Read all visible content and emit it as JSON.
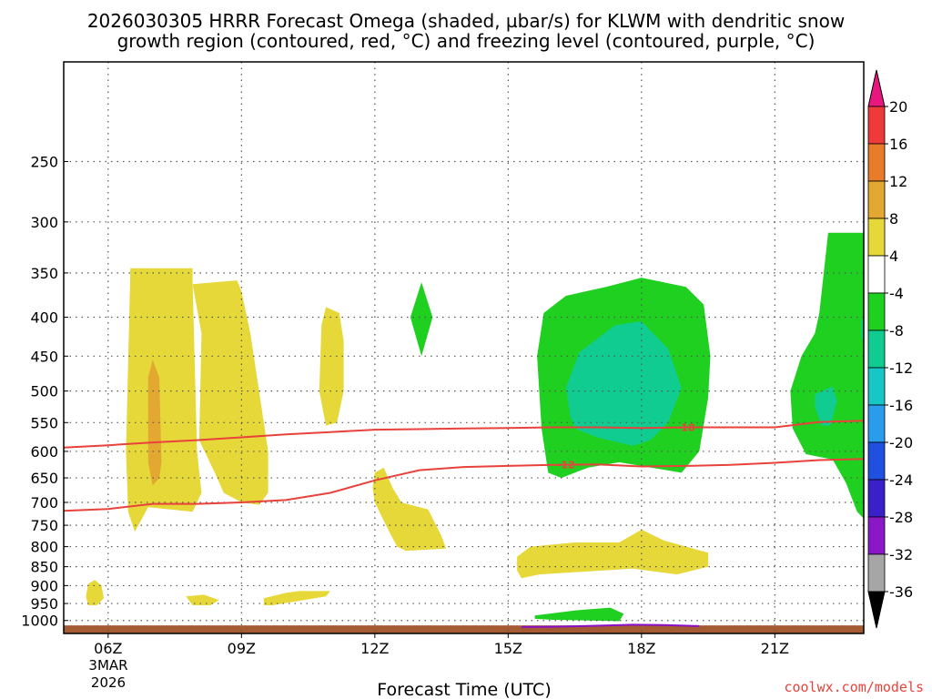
{
  "chart_data": {
    "type": "time-height cross-section (filled contour)",
    "title_line1": "2026030305 HRRR Forecast Omega (shaded, µbar/s) for KLWM with dendritic snow",
    "title_line2": "growth region (contoured, red, °C) and freezing level (contoured, purple, °C)",
    "xlabel": "Forecast Time (UTC)",
    "ylabel": "",
    "x_unit": "hours since 05Z 3 Mar 2026",
    "xlim": [
      0,
      18
    ],
    "ylim": [
      1040,
      185
    ],
    "y_ticks": [
      "250",
      "300",
      "350",
      "400",
      "450",
      "500",
      "550",
      "600",
      "650",
      "700",
      "750",
      "800",
      "850",
      "900",
      "950",
      "1000"
    ],
    "x_ticks": [
      {
        "label": "06Z",
        "x": 1
      },
      {
        "label": "09Z",
        "x": 4
      },
      {
        "label": "12Z",
        "x": 7
      },
      {
        "label": "15Z",
        "x": 10
      },
      {
        "label": "18Z",
        "x": 13
      },
      {
        "label": "21Z",
        "x": 16
      }
    ],
    "x_date_line1": "3MAR",
    "x_date_line2": "2026",
    "watermark": "coolwx.com/models",
    "colorbar": {
      "labels": [
        "20",
        "16",
        "12",
        "8",
        "4",
        "-4",
        "-8",
        "-12",
        "-16",
        "-20",
        "-24",
        "-28",
        "-32",
        "-36"
      ],
      "colors": [
        "#ee3a3a",
        "#e87c2a",
        "#e2a832",
        "#e6d838",
        "#ffffff",
        "#20d020",
        "#10cc90",
        "#18c6c6",
        "#2a9cec",
        "#2050e0",
        "#3a20c8",
        "#8a18c8",
        "#a6a6a6"
      ],
      "top_color": "#e8167e",
      "bottom_color": "#000000"
    },
    "series": [
      {
        "name": "Omega 4 to 8 (yellow)",
        "color": "#e6d838",
        "polygons": [
          [
            [
              0.5,
              930
            ],
            [
              0.55,
              895
            ],
            [
              0.7,
              885
            ],
            [
              0.85,
              900
            ],
            [
              0.9,
              935
            ],
            [
              0.75,
              955
            ],
            [
              0.55,
              955
            ]
          ],
          [
            [
              1.5,
              345
            ],
            [
              2.9,
              345
            ],
            [
              2.9,
              360
            ],
            [
              3.0,
              600
            ],
            [
              3.1,
              680
            ],
            [
              2.9,
              720
            ],
            [
              1.9,
              710
            ],
            [
              1.6,
              765
            ],
            [
              1.45,
              720
            ],
            [
              1.4,
              600
            ]
          ],
          [
            [
              2.9,
              362
            ],
            [
              3.9,
              358
            ],
            [
              4.0,
              370
            ],
            [
              4.2,
              420
            ],
            [
              4.6,
              600
            ],
            [
              4.6,
              680
            ],
            [
              4.4,
              705
            ],
            [
              4.0,
              700
            ],
            [
              3.6,
              680
            ],
            [
              3.4,
              640
            ],
            [
              3.05,
              580
            ],
            [
              3.1,
              420
            ]
          ],
          [
            [
              5.8,
              410
            ],
            [
              5.9,
              388
            ],
            [
              6.2,
              395
            ],
            [
              6.3,
              430
            ],
            [
              6.3,
              500
            ],
            [
              6.15,
              550
            ],
            [
              5.9,
              555
            ],
            [
              5.75,
              500
            ]
          ],
          [
            [
              7.0,
              640
            ],
            [
              7.2,
              630
            ],
            [
              7.4,
              670
            ],
            [
              7.6,
              700
            ],
            [
              8.2,
              715
            ],
            [
              8.5,
              775
            ],
            [
              8.6,
              805
            ],
            [
              7.7,
              810
            ],
            [
              7.5,
              800
            ],
            [
              7.3,
              760
            ],
            [
              7.0,
              700
            ],
            [
              6.95,
              670
            ]
          ],
          [
            [
              10.2,
              825
            ],
            [
              10.5,
              800
            ],
            [
              11.5,
              790
            ],
            [
              12.5,
              790
            ],
            [
              13.0,
              760
            ],
            [
              13.5,
              785
            ],
            [
              14.5,
              815
            ],
            [
              14.5,
              850
            ],
            [
              13.8,
              870
            ],
            [
              12.8,
              855
            ],
            [
              10.7,
              870
            ],
            [
              10.3,
              880
            ],
            [
              10.2,
              860
            ]
          ],
          [
            [
              2.75,
              930
            ],
            [
              3.15,
              925
            ],
            [
              3.5,
              940
            ],
            [
              3.3,
              955
            ],
            [
              2.9,
              955
            ]
          ],
          [
            [
              4.5,
              935
            ],
            [
              5.0,
              920
            ],
            [
              5.3,
              915
            ],
            [
              6.0,
              915
            ],
            [
              5.9,
              930
            ],
            [
              4.7,
              955
            ],
            [
              4.5,
              955
            ]
          ]
        ]
      },
      {
        "name": "Omega 8 to 12 (gold)",
        "color": "#e2a832",
        "polygons": [
          [
            [
              1.9,
              480
            ],
            [
              2.0,
              455
            ],
            [
              2.15,
              480
            ],
            [
              2.2,
              620
            ],
            [
              2.15,
              650
            ],
            [
              2.0,
              665
            ],
            [
              1.9,
              620
            ]
          ]
        ]
      },
      {
        "name": "Omega -4 to -8 (green)",
        "color": "#20d020",
        "polygons": [
          [
            [
              7.8,
              400
            ],
            [
              8.05,
              360
            ],
            [
              8.3,
              400
            ],
            [
              8.05,
              450
            ]
          ],
          [
            [
              10.8,
              395
            ],
            [
              11.3,
              375
            ],
            [
              12.2,
              365
            ],
            [
              13.0,
              355
            ],
            [
              14.0,
              365
            ],
            [
              14.4,
              385
            ],
            [
              14.55,
              450
            ],
            [
              14.5,
              510
            ],
            [
              14.3,
              600
            ],
            [
              13.9,
              640
            ],
            [
              12.5,
              620
            ],
            [
              11.8,
              630
            ],
            [
              11.2,
              650
            ],
            [
              10.9,
              640
            ],
            [
              10.75,
              560
            ],
            [
              10.65,
              450
            ]
          ],
          [
            [
              17.0,
              395
            ],
            [
              17.2,
              310
            ],
            [
              18.0,
              310
            ],
            [
              18.0,
              735
            ],
            [
              17.85,
              720
            ],
            [
              17.6,
              660
            ],
            [
              17.3,
              615
            ],
            [
              16.7,
              605
            ],
            [
              16.4,
              560
            ],
            [
              16.35,
              500
            ],
            [
              16.6,
              450
            ],
            [
              16.9,
              420
            ]
          ],
          [
            [
              10.6,
              985
            ],
            [
              11.5,
              970
            ],
            [
              12.3,
              962
            ],
            [
              12.6,
              980
            ],
            [
              12.5,
              1002
            ],
            [
              11.8,
              1000
            ],
            [
              11.0,
              998
            ],
            [
              10.6,
              995
            ]
          ]
        ]
      },
      {
        "name": "Omega -8 to -12 (teal)",
        "color": "#10cc90",
        "polygons": [
          [
            [
              11.3,
              495
            ],
            [
              11.6,
              445
            ],
            [
              12.4,
              410
            ],
            [
              13.0,
              405
            ],
            [
              13.6,
              440
            ],
            [
              13.9,
              495
            ],
            [
              13.6,
              550
            ],
            [
              13.2,
              580
            ],
            [
              12.8,
              590
            ],
            [
              12.0,
              575
            ],
            [
              11.5,
              560
            ],
            [
              11.4,
              540
            ]
          ],
          [
            [
              16.9,
              505
            ],
            [
              17.3,
              493
            ],
            [
              17.4,
              515
            ],
            [
              17.25,
              555
            ],
            [
              17.05,
              555
            ],
            [
              16.9,
              525
            ]
          ],
          [
            [
              17.95,
              405
            ],
            [
              18.0,
              395
            ],
            [
              18.0,
              432
            ],
            [
              17.95,
              425
            ]
          ]
        ]
      }
    ],
    "contours": [
      {
        "name": "dendritic growth -18C isotherm",
        "color": "#e8423c",
        "label": "-18",
        "label_at": 14.0,
        "points": [
          [
            0,
            593
          ],
          [
            1,
            589
          ],
          [
            2,
            584
          ],
          [
            3,
            580
          ],
          [
            4,
            575
          ],
          [
            5,
            570
          ],
          [
            6,
            566
          ],
          [
            7,
            562
          ],
          [
            8,
            561
          ],
          [
            9,
            560
          ],
          [
            10,
            559
          ],
          [
            11,
            558
          ],
          [
            12,
            558
          ],
          [
            13,
            559
          ],
          [
            14,
            558
          ],
          [
            15,
            558
          ],
          [
            16,
            558
          ],
          [
            17,
            549
          ],
          [
            18,
            547
          ]
        ]
      },
      {
        "name": "dendritic growth -12C isotherm",
        "color": "#e8423c",
        "label": "-12",
        "label_at": 11.3,
        "points": [
          [
            0,
            718
          ],
          [
            1,
            714
          ],
          [
            2,
            703
          ],
          [
            3,
            703
          ],
          [
            4,
            700
          ],
          [
            5,
            695
          ],
          [
            6,
            680
          ],
          [
            7,
            655
          ],
          [
            8,
            635
          ],
          [
            9,
            629
          ],
          [
            10,
            627
          ],
          [
            11,
            625
          ],
          [
            12,
            624
          ],
          [
            13,
            628
          ],
          [
            14,
            627
          ],
          [
            15,
            625
          ],
          [
            16,
            621
          ],
          [
            17,
            616
          ],
          [
            18,
            614
          ]
        ]
      },
      {
        "name": "freezing level 0C",
        "color": "#8a10c8",
        "label": "",
        "label_at": null,
        "points": [
          [
            10.3,
            1020
          ],
          [
            11.0,
            1019
          ],
          [
            12.0,
            1016
          ],
          [
            12.8,
            1013
          ],
          [
            13.5,
            1014
          ],
          [
            14.3,
            1017
          ]
        ]
      }
    ],
    "terrain": {
      "name": "surface / ground",
      "color": "#a45a32",
      "pressure": 1015
    }
  }
}
